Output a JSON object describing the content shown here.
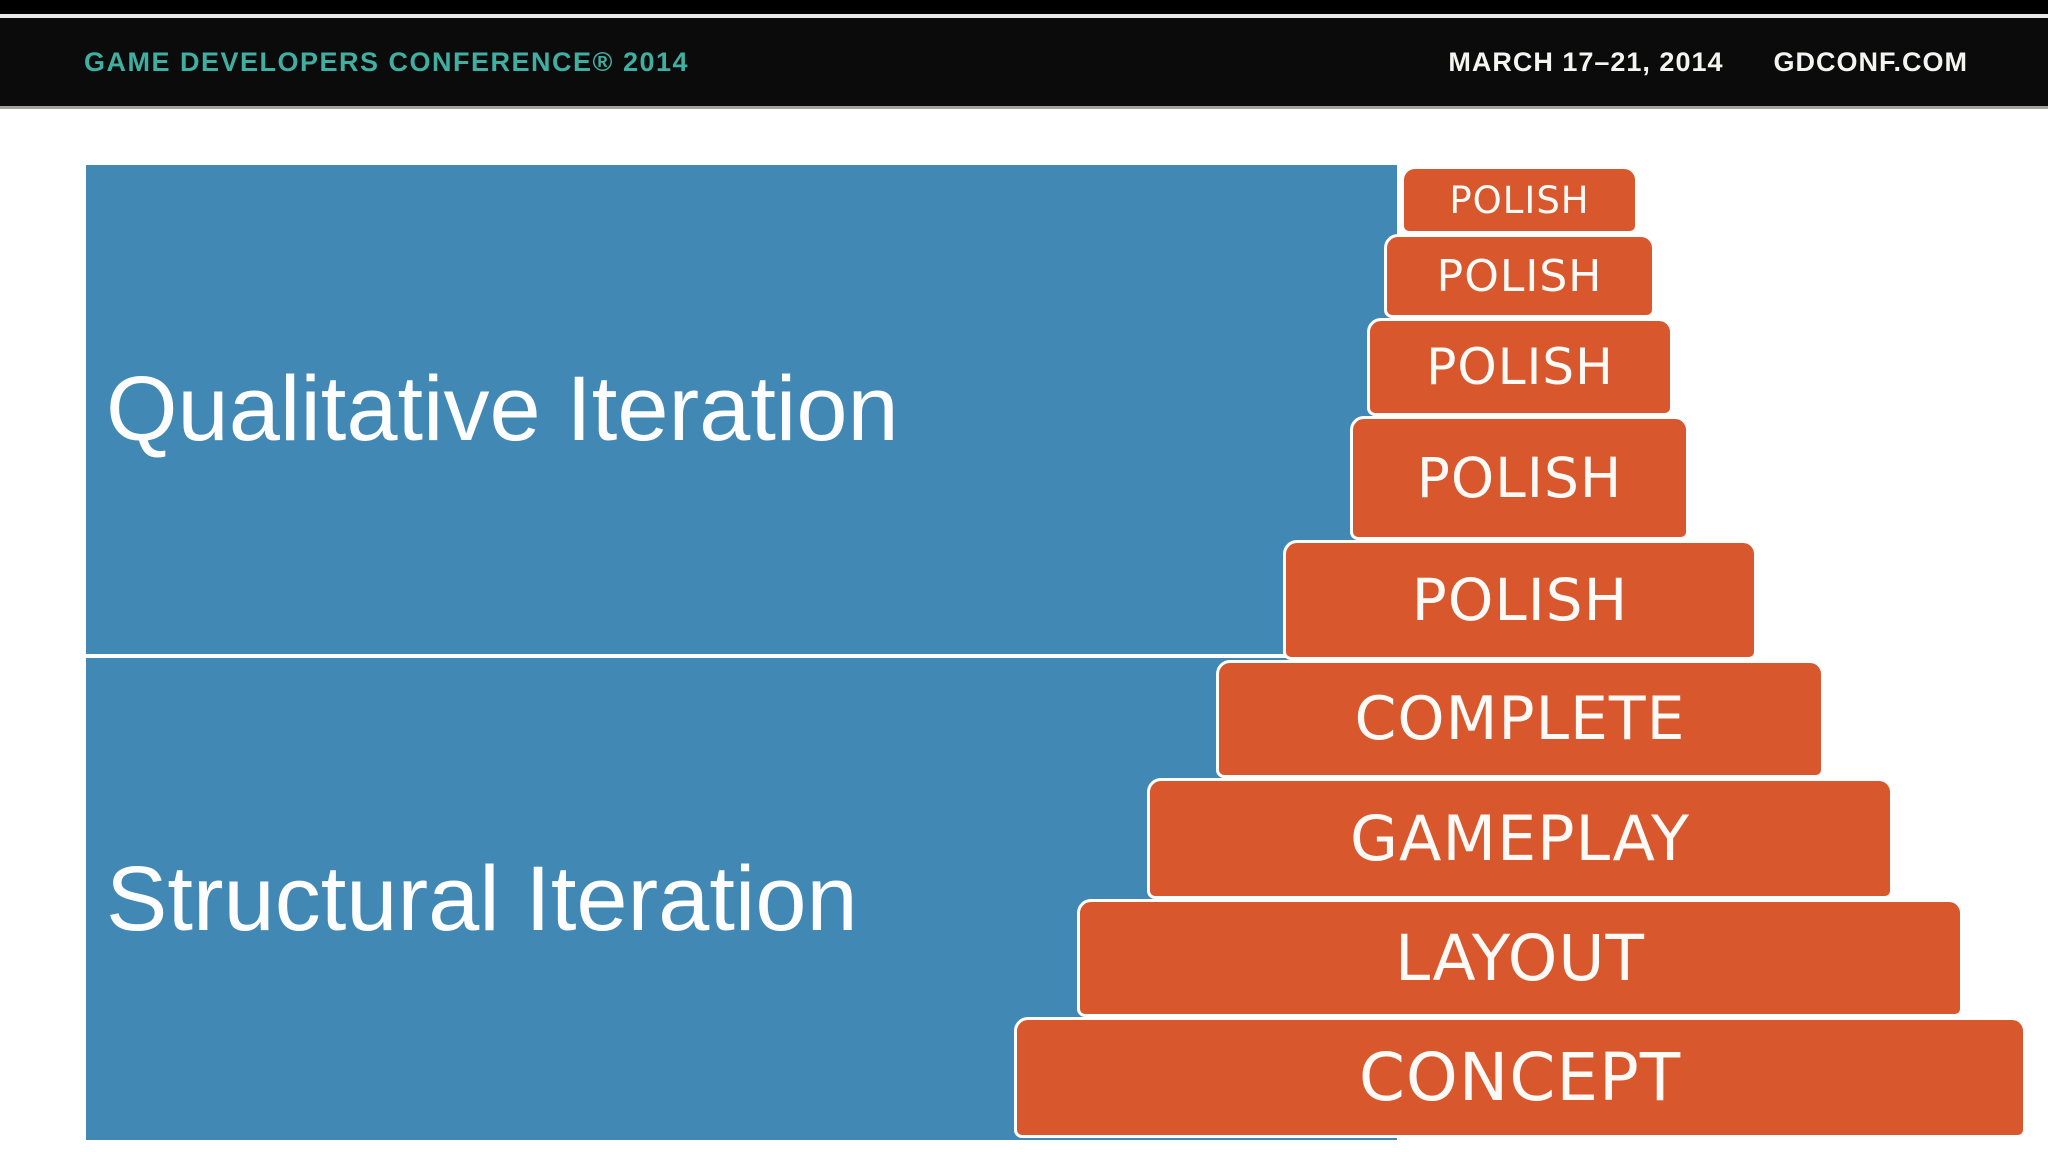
{
  "header": {
    "brand": "GAME DEVELOPERS CONFERENCE® 2014",
    "dates": "MARCH 17–21, 2014",
    "site": "GDCONF.COM"
  },
  "slide": {
    "sections": [
      {
        "label": "Qualitative Iteration"
      },
      {
        "label": "Structural Iteration"
      }
    ],
    "pyramid_blocks": [
      "POLISH",
      "POLISH",
      "POLISH",
      "POLISH",
      "POLISH",
      "COMPLETE",
      "GAMEPLAY",
      "LAYOUT",
      "CONCEPT"
    ]
  },
  "colors": {
    "accent_teal": "#3fafa2",
    "header_black": "#0b0b0b",
    "slide_blue": "#4189b4",
    "block_orange": "#d9572c",
    "seam_white": "#ffffff"
  }
}
